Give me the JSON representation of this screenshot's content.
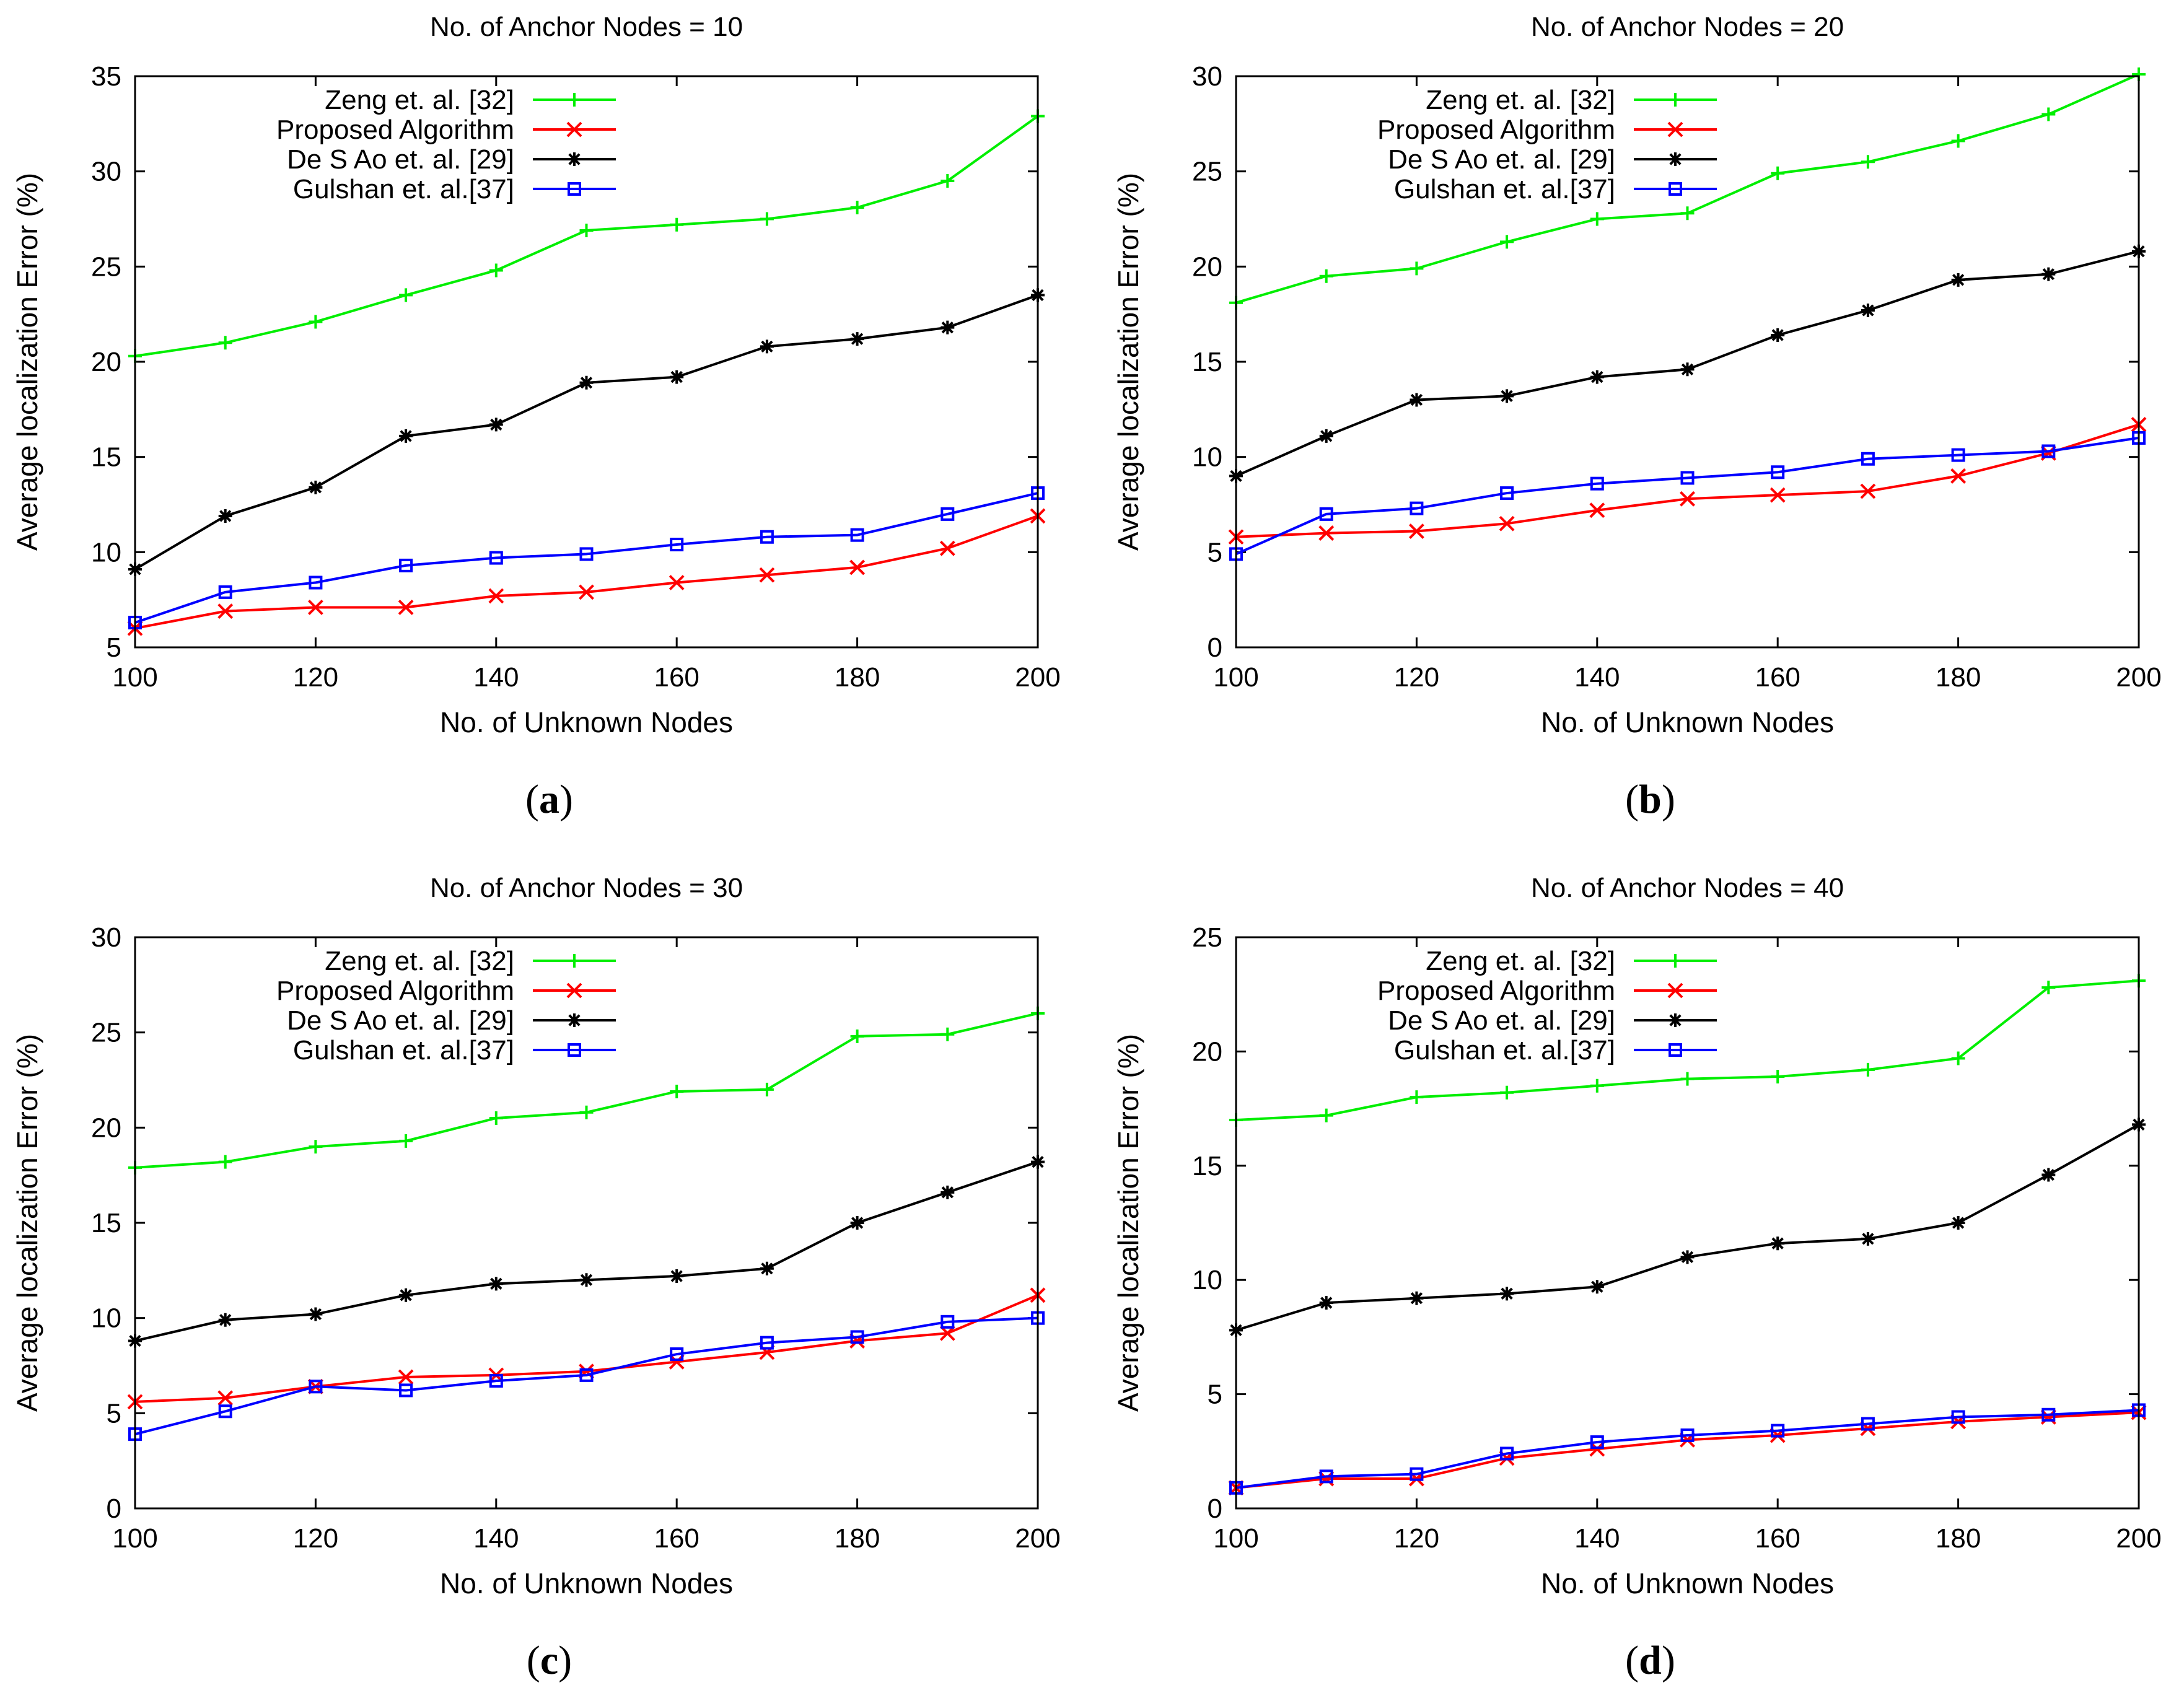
{
  "chart_data": [
    {
      "type": "line",
      "title": "No. of Anchor Nodes = 10",
      "caption_letter": "a",
      "xlabel": "No. of Unknown Nodes",
      "ylabel": "Average localization Error (%)",
      "xlim": [
        100,
        200
      ],
      "ylim": [
        5,
        35
      ],
      "xticks": [
        100,
        120,
        140,
        160,
        180,
        200
      ],
      "yticks": [
        5,
        10,
        15,
        20,
        25,
        30,
        35
      ],
      "x": [
        100,
        110,
        120,
        130,
        140,
        150,
        160,
        170,
        180,
        190,
        200
      ],
      "legend_position": "top-left",
      "series": [
        {
          "name": "Zeng et. al. [32]",
          "color": "#00ee00",
          "marker": "plus",
          "values": [
            20.3,
            21.0,
            22.1,
            23.5,
            24.8,
            26.9,
            27.2,
            27.5,
            28.1,
            29.5,
            32.9
          ]
        },
        {
          "name": "Proposed Algorithm",
          "color": "#ff0000",
          "marker": "cross",
          "values": [
            6.0,
            6.9,
            7.1,
            7.1,
            7.7,
            7.9,
            8.4,
            8.8,
            9.2,
            10.2,
            11.9
          ]
        },
        {
          "name": "De S Ao et. al. [29]",
          "color": "#000000",
          "marker": "star",
          "values": [
            9.1,
            11.9,
            13.4,
            16.1,
            16.7,
            18.9,
            19.2,
            20.8,
            21.2,
            21.8,
            23.5
          ]
        },
        {
          "name": "Gulshan et. al.[37]",
          "color": "#0000ff",
          "marker": "square",
          "values": [
            6.3,
            7.9,
            8.4,
            9.3,
            9.7,
            9.9,
            10.4,
            10.8,
            10.9,
            12.0,
            13.1
          ]
        }
      ]
    },
    {
      "type": "line",
      "title": "No. of Anchor Nodes = 20",
      "caption_letter": "b",
      "xlabel": "No. of Unknown Nodes",
      "ylabel": "Average localization Error (%)",
      "xlim": [
        100,
        200
      ],
      "ylim": [
        0,
        30
      ],
      "xticks": [
        100,
        120,
        140,
        160,
        180,
        200
      ],
      "yticks": [
        0,
        5,
        10,
        15,
        20,
        25,
        30
      ],
      "x": [
        100,
        110,
        120,
        130,
        140,
        150,
        160,
        170,
        180,
        190,
        200
      ],
      "legend_position": "top-left",
      "series": [
        {
          "name": "Zeng et. al. [32]",
          "color": "#00ee00",
          "marker": "plus",
          "values": [
            18.1,
            19.5,
            19.9,
            21.3,
            22.5,
            22.8,
            24.9,
            25.5,
            26.6,
            28.0,
            30.1
          ]
        },
        {
          "name": "Proposed Algorithm",
          "color": "#ff0000",
          "marker": "cross",
          "values": [
            5.8,
            6.0,
            6.1,
            6.5,
            7.2,
            7.8,
            8.0,
            8.2,
            9.0,
            10.2,
            11.7
          ]
        },
        {
          "name": "De S Ao et. al. [29]",
          "color": "#000000",
          "marker": "star",
          "values": [
            9.0,
            11.1,
            13.0,
            13.2,
            14.2,
            14.6,
            16.4,
            17.7,
            19.3,
            19.6,
            20.8
          ]
        },
        {
          "name": "Gulshan et. al.[37]",
          "color": "#0000ff",
          "marker": "square",
          "values": [
            4.9,
            7.0,
            7.3,
            8.1,
            8.6,
            8.9,
            9.2,
            9.9,
            10.1,
            10.3,
            11.0
          ]
        }
      ]
    },
    {
      "type": "line",
      "title": "No. of Anchor Nodes = 30",
      "caption_letter": "c",
      "xlabel": "No. of Unknown Nodes",
      "ylabel": "Average localization Error (%)",
      "xlim": [
        100,
        200
      ],
      "ylim": [
        0,
        30
      ],
      "xticks": [
        100,
        120,
        140,
        160,
        180,
        200
      ],
      "yticks": [
        0,
        5,
        10,
        15,
        20,
        25,
        30
      ],
      "x": [
        100,
        110,
        120,
        130,
        140,
        150,
        160,
        170,
        180,
        190,
        200
      ],
      "legend_position": "top-left",
      "series": [
        {
          "name": "Zeng et. al. [32]",
          "color": "#00ee00",
          "marker": "plus",
          "values": [
            17.9,
            18.2,
            19.0,
            19.3,
            20.5,
            20.8,
            21.9,
            22.0,
            24.8,
            24.9,
            26.0
          ]
        },
        {
          "name": "Proposed Algorithm",
          "color": "#ff0000",
          "marker": "cross",
          "values": [
            5.6,
            5.8,
            6.4,
            6.9,
            7.0,
            7.2,
            7.7,
            8.2,
            8.8,
            9.2,
            11.2
          ]
        },
        {
          "name": "De S Ao et. al. [29]",
          "color": "#000000",
          "marker": "star",
          "values": [
            8.8,
            9.9,
            10.2,
            11.2,
            11.8,
            12.0,
            12.2,
            12.6,
            15.0,
            16.6,
            18.2
          ]
        },
        {
          "name": "Gulshan et. al.[37]",
          "color": "#0000ff",
          "marker": "square",
          "values": [
            3.9,
            5.1,
            6.4,
            6.2,
            6.7,
            7.0,
            8.1,
            8.7,
            9.0,
            9.8,
            10.0
          ]
        }
      ]
    },
    {
      "type": "line",
      "title": "No. of Anchor Nodes = 40",
      "caption_letter": "d",
      "xlabel": "No. of Unknown Nodes",
      "ylabel": "Average localization Error (%)",
      "xlim": [
        100,
        200
      ],
      "ylim": [
        0,
        25
      ],
      "xticks": [
        100,
        120,
        140,
        160,
        180,
        200
      ],
      "yticks": [
        0,
        5,
        10,
        15,
        20,
        25
      ],
      "x": [
        100,
        110,
        120,
        130,
        140,
        150,
        160,
        170,
        180,
        190,
        200
      ],
      "legend_position": "top-left",
      "series": [
        {
          "name": "Zeng et. al. [32]",
          "color": "#00ee00",
          "marker": "plus",
          "values": [
            17.0,
            17.2,
            18.0,
            18.2,
            18.5,
            18.8,
            18.9,
            19.2,
            19.7,
            22.8,
            23.1
          ]
        },
        {
          "name": "Proposed Algorithm",
          "color": "#ff0000",
          "marker": "cross",
          "values": [
            0.9,
            1.3,
            1.3,
            2.2,
            2.6,
            3.0,
            3.2,
            3.5,
            3.8,
            4.0,
            4.2
          ]
        },
        {
          "name": "De S Ao et. al. [29]",
          "color": "#000000",
          "marker": "star",
          "values": [
            7.8,
            9.0,
            9.2,
            9.4,
            9.7,
            11.0,
            11.6,
            11.8,
            12.5,
            14.6,
            16.8
          ]
        },
        {
          "name": "Gulshan et. al.[37]",
          "color": "#0000ff",
          "marker": "square",
          "values": [
            0.9,
            1.4,
            1.5,
            2.4,
            2.9,
            3.2,
            3.4,
            3.7,
            4.0,
            4.1,
            4.3
          ]
        }
      ]
    }
  ]
}
